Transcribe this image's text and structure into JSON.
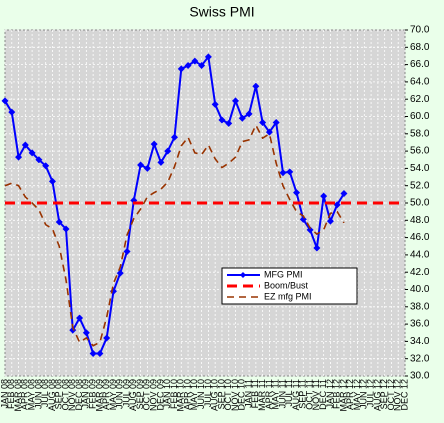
{
  "chart_data": {
    "type": "line",
    "title": "Swiss PMI",
    "categories": [
      "JAN 08",
      "FEB 08",
      "MAR 08",
      "APR 08",
      "MAY 08",
      "JUN 08",
      "JUL 08",
      "AUG 08",
      "SEP 08",
      "OCT 08",
      "NOV 08",
      "DEC 08",
      "JAN 09",
      "FEB 09",
      "MAR 09",
      "APR 09",
      "MAY 09",
      "JUN 09",
      "JUL 09",
      "AUG 09",
      "SEP 09",
      "OCT 09",
      "NOV 09",
      "DEC 09",
      "JAN 10",
      "FEB 10",
      "MAR 10",
      "APR 10",
      "MAY 10",
      "JUN 10",
      "JUL 10",
      "AUG 10",
      "SEP 10",
      "OCT 10",
      "NOV 10",
      "DEC 10",
      "JAN 11",
      "FEB 11",
      "MAR 11",
      "APR 11",
      "MAY 11",
      "JUN 11",
      "JUL 11",
      "AUG 11",
      "SEP 11",
      "OCT 11",
      "NOV 11",
      "DEC 11",
      "JAN 12",
      "FEB 12",
      "MAR 12",
      "APR 12",
      "MAY 12",
      "JUN 12",
      "JUL 12",
      "AUG 12",
      "SEP 12",
      "OCT 12",
      "NOV 12",
      "DEC 12"
    ],
    "series": [
      {
        "name": "MFG PMI",
        "color": "#0000ff",
        "style": "solid",
        "marker": "diamond",
        "values": [
          61.8,
          60.5,
          55.3,
          56.7,
          55.8,
          55.0,
          54.3,
          52.5,
          47.8,
          47.0,
          35.3,
          36.7,
          35.0,
          32.6,
          32.6,
          34.4,
          39.8,
          41.9,
          44.4,
          50.3,
          54.4,
          54.0,
          56.8,
          54.7,
          56.0,
          57.6,
          65.5,
          65.9,
          66.4,
          65.9,
          66.9,
          61.4,
          59.6,
          59.2,
          61.8,
          59.8,
          60.3,
          63.5,
          59.3,
          58.2,
          59.3,
          53.5,
          53.6,
          51.2,
          48.1,
          46.9,
          44.8,
          50.8,
          47.9,
          49.8,
          51.1,
          null,
          null,
          null,
          null,
          null,
          null,
          null,
          null,
          null
        ]
      },
      {
        "name": "Boom/Bust",
        "color": "#ff0000",
        "style": "dashed-bold",
        "values": [
          50,
          50,
          50,
          50,
          50,
          50,
          50,
          50,
          50,
          50,
          50,
          50,
          50,
          50,
          50,
          50,
          50,
          50,
          50,
          50,
          50,
          50,
          50,
          50,
          50,
          50,
          50,
          50,
          50,
          50,
          50,
          50,
          50,
          50,
          50,
          50,
          50,
          50,
          50,
          50,
          50,
          50,
          50,
          50,
          50,
          50,
          50,
          50,
          50,
          50,
          50,
          50,
          50,
          50,
          50,
          50,
          50,
          50,
          50,
          50
        ]
      },
      {
        "name": "EZ mfg PMI",
        "color": "#993300",
        "style": "dashed",
        "values": [
          52.0,
          52.3,
          52.0,
          50.7,
          50.0,
          49.2,
          47.5,
          47.0,
          45.0,
          41.1,
          35.6,
          33.9,
          34.4,
          33.5,
          33.9,
          36.8,
          40.7,
          42.6,
          46.3,
          48.2,
          49.3,
          50.7,
          51.2,
          51.6,
          52.4,
          54.2,
          56.6,
          57.6,
          55.8,
          55.6,
          56.7,
          55.1,
          54.1,
          54.6,
          55.3,
          57.1,
          57.3,
          59.0,
          57.5,
          58.0,
          54.6,
          52.0,
          50.4,
          49.0,
          48.5,
          47.1,
          46.4,
          46.9,
          48.8,
          49.0,
          47.7,
          null,
          null,
          null,
          null,
          null,
          null,
          null,
          null,
          null
        ]
      }
    ],
    "ylim": [
      30,
      70
    ],
    "yticks": [
      {
        "value": 30,
        "label": "30.0"
      },
      {
        "value": 32,
        "label": "32.0"
      },
      {
        "value": 34,
        "label": "34.0"
      },
      {
        "value": 36,
        "label": "36.0"
      },
      {
        "value": 38,
        "label": "38.0"
      },
      {
        "value": 40,
        "label": "40.0"
      },
      {
        "value": 42,
        "label": "42.0"
      },
      {
        "value": 44,
        "label": "44.0"
      },
      {
        "value": 46,
        "label": "46.0"
      },
      {
        "value": 48,
        "label": "48.0"
      },
      {
        "value": 50,
        "label": "50.0"
      },
      {
        "value": 52,
        "label": "52.0"
      },
      {
        "value": 54,
        "label": "54.0"
      },
      {
        "value": 56,
        "label": "56.0"
      },
      {
        "value": 58,
        "label": "58.0"
      },
      {
        "value": 60,
        "label": "60.0"
      },
      {
        "value": 62,
        "label": "62.0"
      },
      {
        "value": 64,
        "label": "64.0"
      },
      {
        "value": 66,
        "label": "66.0"
      },
      {
        "value": 68,
        "label": "68.0"
      },
      {
        "value": 70,
        "label": "70.0"
      }
    ],
    "grid": true,
    "legend": "lower right"
  }
}
